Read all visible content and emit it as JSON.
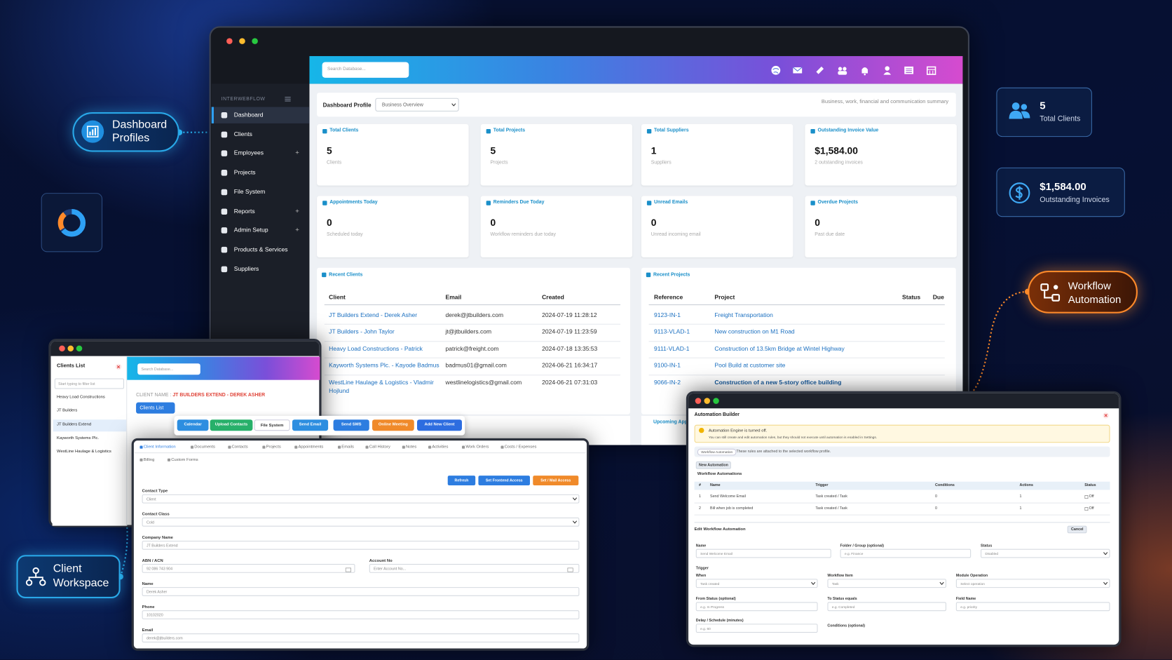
{
  "badges": {
    "dashboard_profiles": "Dashboard Profiles",
    "client_workspace": "Client Workspace",
    "workflow_automation": "Workflow Automation",
    "total_clients": {
      "value": "5",
      "label": "Total Clients"
    },
    "outstanding_invoices": {
      "value": "$1,584.00",
      "label": "Outstanding Invoices"
    }
  },
  "dashboard": {
    "search": "Search Database...",
    "brand": "INTERWEBFLOW",
    "menu": [
      {
        "label": "Dashboard"
      },
      {
        "label": "Clients"
      },
      {
        "label": "Employees",
        "toggle": "+"
      },
      {
        "label": "Projects"
      },
      {
        "label": "File System"
      },
      {
        "label": "Reports",
        "toggle": "+"
      },
      {
        "label": "Admin Setup",
        "toggle": "+"
      },
      {
        "label": "Products & Services"
      },
      {
        "label": "Suppliers"
      }
    ],
    "profile_label": "Dashboard Profile",
    "profile_select": "Business Overview",
    "profile_note": "Business, work, financial and communication summary",
    "cards": [
      {
        "title": "Total Clients",
        "value": "5",
        "sub": "Clients"
      },
      {
        "title": "Total Projects",
        "value": "5",
        "sub": "Projects"
      },
      {
        "title": "Total Suppliers",
        "value": "1",
        "sub": "Suppliers"
      },
      {
        "title": "Outstanding Invoice Value",
        "value": "$1,584.00",
        "sub": "2 outstanding invoices"
      },
      {
        "title": "Appointments Today",
        "value": "0",
        "sub": "Scheduled today"
      },
      {
        "title": "Reminders Due Today",
        "value": "0",
        "sub": "Workflow reminders due today"
      },
      {
        "title": "Unread Emails",
        "value": "0",
        "sub": "Unread incoming email"
      },
      {
        "title": "Overdue Projects",
        "value": "0",
        "sub": "Past due date"
      }
    ],
    "recent_clients": {
      "title": "Recent Clients",
      "columns": [
        "Client",
        "Email",
        "Created"
      ],
      "rows": [
        [
          "JT Builders Extend - Derek Asher",
          "derek@jtbuilders.com",
          "2024-07-19 11:28:12"
        ],
        [
          "JT Builders - John Taylor",
          "jt@jtbuilders.com",
          "2024-07-19 11:23:59"
        ],
        [
          "Heavy Load Constructions - Patrick",
          "patrick@freight.com",
          "2024-07-18 13:35:53"
        ],
        [
          "Kayworth Systems Plc. - Kayode Badmus",
          "badmus01@gmail.com",
          "2024-06-21 16:34:17"
        ],
        [
          "WestLine Haulage & Logistics - Vladmir Hojlund",
          "westlinelogistics@gmail.com",
          "2024-06-21 07:31:03"
        ]
      ]
    },
    "recent_projects": {
      "title": "Recent Projects",
      "columns": [
        "Reference",
        "Project",
        "Status",
        "Due"
      ],
      "rows": [
        [
          "9123-IN-1",
          "Freight Transportation"
        ],
        [
          "9113-VLAD-1",
          "New construction on M1 Road"
        ],
        [
          "9111-VLAD-1",
          "Construction of 13.5km Bridge at Wintel Highway"
        ],
        [
          "9100-IN-1",
          "Pool Build at customer site"
        ],
        [
          "9066-IN-2",
          "Construction of a new 5-story office building"
        ]
      ]
    },
    "upcoming": "Upcoming Appointments"
  },
  "client_workspace": {
    "list_title": "Clients List",
    "filter": "Start typing to filter list",
    "clients": [
      "Heavy Load Constructions",
      "JT Builders",
      "JT Builders Extend",
      "Kayworth Systems Plc.",
      "WestLine Haulage & Logistics"
    ],
    "search": "Search Database...",
    "client_name_label": "CLIENT NAME :",
    "client_name": "JT BUILDERS EXTEND - DEREK ASHER",
    "list_button": "Clients List",
    "actions": [
      {
        "label": "Calendar",
        "color": "#2d8ee0"
      },
      {
        "label": "Upload Contacts",
        "color": "#27b06a"
      },
      {
        "label": "File System",
        "color": "#ffffff"
      },
      {
        "label": "Send Email",
        "color": "#2d8ee0"
      },
      {
        "label": "Send SMS",
        "color": "#2d7de0"
      },
      {
        "label": "Online Meeting",
        "color": "#f08a2a"
      },
      {
        "label": "Add New Client",
        "color": "#2d6de0"
      }
    ],
    "tabs": [
      "Client Information",
      "Documents",
      "Contacts",
      "Projects",
      "Appointments",
      "Emails",
      "Call History",
      "Notes",
      "Activities",
      "Work Orders",
      "Costs / Expenses",
      "Billing",
      "Custom Forms"
    ],
    "buttons": [
      {
        "label": "Refresh",
        "color": "#2d7de0"
      },
      {
        "label": "Set Frontend Access",
        "color": "#2d7de0"
      },
      {
        "label": "Set / Mail Access",
        "color": "#f08a2a"
      }
    ],
    "fields": [
      {
        "label": "Contact Type",
        "value": "Client",
        "control": "select"
      },
      {
        "label": "Contact Class",
        "value": "Cold",
        "control": "select"
      },
      {
        "label": "Company Name",
        "value": "JT Builders Extend"
      },
      {
        "label": "ABN / ACN",
        "value": "92 086 743 904"
      },
      {
        "label": "Account No",
        "value": "Enter Account No..."
      },
      {
        "label": "Name",
        "value": "Derek Asher"
      },
      {
        "label": "Phone",
        "value": "10102020"
      },
      {
        "label": "Email",
        "value": "derek@jtbuilders.com"
      }
    ]
  },
  "automation": {
    "title": "Automation Builder",
    "alert_title": "Automation Engine is turned off.",
    "alert_text": "You can still create and edit automation rules, but they should not execute until automation is enabled in Settings.",
    "profile_tag": "Workflow Automation",
    "profile_text": "These rules are attached to the selected workflow profile.",
    "new_button": "New Automation",
    "list_title": "Workflow Automations",
    "columns": [
      "#",
      "Name",
      "Trigger",
      "Conditions",
      "Actions",
      "Status"
    ],
    "rows": [
      [
        "1",
        "Send Welcome Email",
        "Task created / Task",
        "0",
        "1",
        "Off"
      ],
      [
        "2",
        "Bill when job is completed",
        "Task created / Task",
        "0",
        "1",
        "Off"
      ]
    ],
    "edit_title": "Edit Workflow Automation",
    "cancel": "Cancel",
    "trigger_title": "Trigger",
    "fields": [
      {
        "label": "Name",
        "value": "Send Welcome Email"
      },
      {
        "label": "Folder / Group (optional)",
        "value": "e.g. Finance"
      },
      {
        "label": "Status",
        "value": "Disabled",
        "control": "select"
      },
      {
        "label": "When",
        "value": "Task created",
        "control": "select"
      },
      {
        "label": "Workflow Item",
        "value": "Task",
        "control": "select"
      },
      {
        "label": "Module Operation",
        "value": "Select operation",
        "control": "select"
      },
      {
        "label": "From Status (optional)",
        "value": "e.g. In Progress"
      },
      {
        "label": "To Status equals",
        "value": "e.g. Completed"
      },
      {
        "label": "Field Name",
        "value": "e.g. priority"
      },
      {
        "label": "Delay / Schedule (minutes)",
        "value": "e.g. 60"
      }
    ],
    "conditions_label": "Conditions (optional)"
  }
}
